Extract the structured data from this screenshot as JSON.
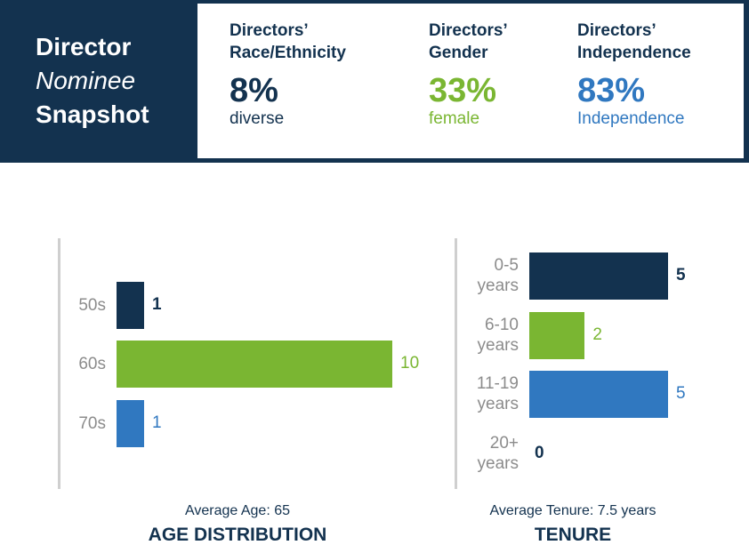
{
  "header": {
    "title_line1": "Director",
    "title_line2": "Nominee",
    "title_line3": "Snapshot",
    "stats": [
      {
        "label": "Directors’\nRace/Ethnicity",
        "value": "8%",
        "desc": "diverse",
        "color": "#13324f"
      },
      {
        "label": "Directors’\nGender",
        "value": "33%",
        "desc": "female",
        "color": "#7ab632"
      },
      {
        "label": "Directors’\nIndependence",
        "value": "83%",
        "desc": "Independence",
        "color": "#3078c0"
      }
    ]
  },
  "chart_data": [
    {
      "type": "bar",
      "orientation": "horizontal",
      "title": "AGE DISTRIBUTION",
      "caption": "Average Age: 65",
      "categories": [
        "50s",
        "60s",
        "70s"
      ],
      "values": [
        1,
        10,
        1
      ],
      "colors": [
        "#13324f",
        "#7ab632",
        "#3078c0"
      ],
      "xlim": [
        0,
        10
      ]
    },
    {
      "type": "bar",
      "orientation": "horizontal",
      "title": "TENURE",
      "caption": "Average Tenure: 7.5 years",
      "categories": [
        "0-5\nyears",
        "6-10\nyears",
        "11-19\nyears",
        "20+\nyears"
      ],
      "values": [
        5,
        2,
        5,
        0
      ],
      "colors": [
        "#13324f",
        "#7ab632",
        "#3078c0",
        "#13324f"
      ],
      "xlim": [
        0,
        5
      ]
    }
  ]
}
